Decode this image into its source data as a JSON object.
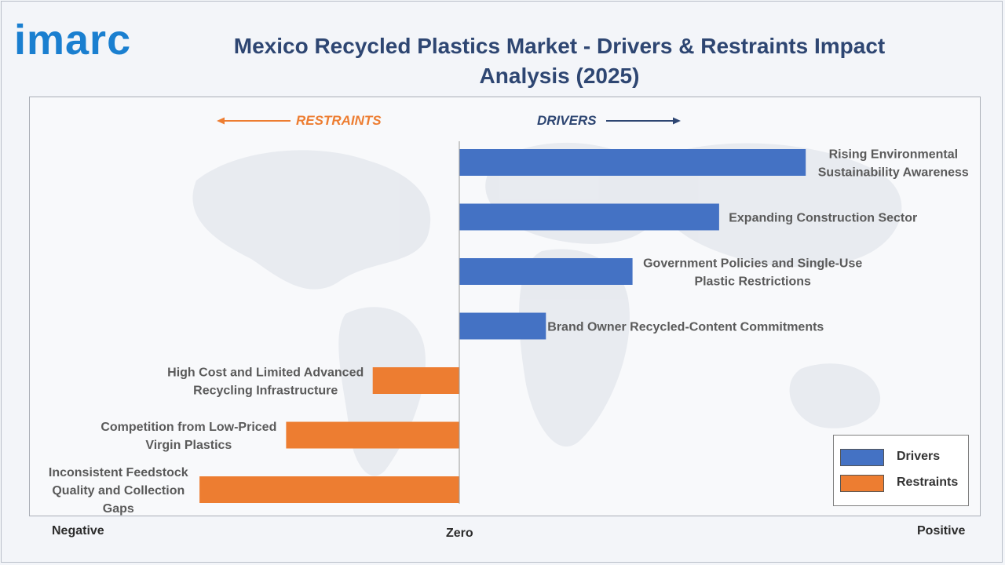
{
  "logo": "imarc",
  "header": {
    "title": "Mexico Recycled Plastics Market - Drivers & Restraints Impact Analysis (2025)"
  },
  "directions": {
    "restraints": "RESTRAINTS",
    "drivers": "DRIVERS"
  },
  "axis": {
    "negative": "Negative",
    "zero": "Zero",
    "positive": "Positive"
  },
  "colors": {
    "drivers": "#4472c4",
    "restraints": "#ed7d31",
    "title": "#2e4672",
    "logo": "#1a7fd0"
  },
  "legend": {
    "drivers": "Drivers",
    "restraints": "Restraints"
  },
  "chart_data": {
    "type": "bar",
    "orientation": "horizontal",
    "title": "Mexico Recycled Plastics Market - Drivers & Restraints Impact Analysis (2025)",
    "categories": [
      "Rising Environmental Sustainability Awareness",
      "Expanding Construction Sector",
      "Government Policies and Single-Use Plastic Restrictions",
      "Brand Owner Recycled-Content Commitments",
      "High Cost and Limited Advanced Recycling Infrastructure",
      "Competition from Low-Priced Virgin Plastics",
      "Inconsistent Feedstock Quality and Collection Gaps"
    ],
    "series": [
      {
        "name": "Drivers",
        "values": [
          4,
          3,
          2,
          1,
          0,
          0,
          0
        ]
      },
      {
        "name": "Restraints",
        "values": [
          0,
          0,
          0,
          0,
          -1,
          -2,
          -3
        ]
      }
    ],
    "xlim": [
      -5,
      6
    ],
    "grid": false,
    "legend_position": "bottom-right"
  }
}
